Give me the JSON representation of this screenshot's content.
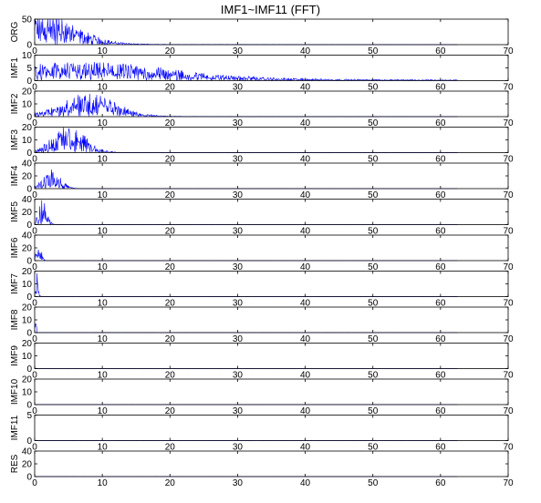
{
  "figure": {
    "title": "IMF1~IMF11 (FFT)"
  },
  "chart_data": [
    {
      "type": "line",
      "ylabel": "ORG",
      "xlim": [
        0,
        70
      ],
      "ylim": [
        0,
        50
      ],
      "yticks": [
        0,
        50
      ],
      "xticks": [
        0,
        10,
        20,
        30,
        40,
        50,
        60,
        70
      ],
      "x_max": 62.5,
      "line_color": "#0000ff",
      "profile": {
        "peak_freq": 1.0,
        "peak_amp": 40,
        "spread": 5,
        "floor": 0.8
      }
    },
    {
      "type": "line",
      "ylabel": "IMF1",
      "xlim": [
        0,
        70
      ],
      "ylim": [
        0,
        10
      ],
      "yticks": [
        0,
        5,
        10
      ],
      "xticks": [
        0,
        10,
        20,
        30,
        40,
        50,
        60,
        70
      ],
      "x_max": 62.5,
      "line_color": "#0000ff",
      "profile": {
        "peak_freq": 8.0,
        "peak_amp": 4,
        "spread": 12,
        "floor": 1.2
      }
    },
    {
      "type": "line",
      "ylabel": "IMF2",
      "xlim": [
        0,
        70
      ],
      "ylim": [
        0,
        20
      ],
      "yticks": [
        0,
        10,
        20
      ],
      "xticks": [
        0,
        10,
        20,
        30,
        40,
        50,
        60,
        70
      ],
      "x_max": 62.5,
      "line_color": "#0000ff",
      "profile": {
        "peak_freq": 8.0,
        "peak_amp": 12,
        "spread": 4,
        "floor": 0.3
      }
    },
    {
      "type": "line",
      "ylabel": "IMF3",
      "xlim": [
        0,
        70
      ],
      "ylim": [
        0,
        20
      ],
      "yticks": [
        0,
        10,
        20
      ],
      "xticks": [
        0,
        10,
        20,
        30,
        40,
        50,
        60,
        70
      ],
      "x_max": 62.5,
      "line_color": "#0000ff",
      "profile": {
        "peak_freq": 5.0,
        "peak_amp": 14,
        "spread": 2.5,
        "floor": 0.1
      }
    },
    {
      "type": "line",
      "ylabel": "IMF4",
      "xlim": [
        0,
        70
      ],
      "ylim": [
        0,
        40
      ],
      "yticks": [
        0,
        20,
        40
      ],
      "xticks": [
        0,
        10,
        20,
        30,
        40,
        50,
        60,
        70
      ],
      "x_max": 62.5,
      "line_color": "#0000ff",
      "profile": {
        "peak_freq": 2.5,
        "peak_amp": 20,
        "spread": 1.3,
        "floor": 0.05
      }
    },
    {
      "type": "line",
      "ylabel": "IMF5",
      "xlim": [
        0,
        70
      ],
      "ylim": [
        0,
        40
      ],
      "yticks": [
        0,
        20,
        40
      ],
      "xticks": [
        0,
        10,
        20,
        30,
        40,
        50,
        60,
        70
      ],
      "x_max": 62.5,
      "line_color": "#0000ff",
      "profile": {
        "peak_freq": 1.2,
        "peak_amp": 28,
        "spread": 0.6,
        "floor": 0.05
      }
    },
    {
      "type": "line",
      "ylabel": "IMF6",
      "xlim": [
        0,
        70
      ],
      "ylim": [
        0,
        40
      ],
      "yticks": [
        0,
        20,
        40
      ],
      "xticks": [
        0,
        10,
        20,
        30,
        40,
        50,
        60,
        70
      ],
      "x_max": 62.5,
      "line_color": "#0000ff",
      "profile": {
        "peak_freq": 0.6,
        "peak_amp": 20,
        "spread": 0.35,
        "floor": 0.05
      }
    },
    {
      "type": "line",
      "ylabel": "IMF7",
      "xlim": [
        0,
        70
      ],
      "ylim": [
        0,
        20
      ],
      "yticks": [
        0,
        10,
        20
      ],
      "xticks": [
        0,
        10,
        20,
        30,
        40,
        50,
        60,
        70
      ],
      "x_max": 62.5,
      "line_color": "#0000ff",
      "profile": {
        "peak_freq": 0.3,
        "peak_amp": 15,
        "spread": 0.2,
        "floor": 0.05
      }
    },
    {
      "type": "line",
      "ylabel": "IMF8",
      "xlim": [
        0,
        70
      ],
      "ylim": [
        0,
        20
      ],
      "yticks": [
        0,
        10,
        20
      ],
      "xticks": [
        0,
        10,
        20,
        30,
        40,
        50,
        60,
        70
      ],
      "x_max": 62.5,
      "line_color": "#0000ff",
      "profile": {
        "peak_freq": 0.15,
        "peak_amp": 10,
        "spread": 0.1,
        "floor": 0.03
      }
    },
    {
      "type": "line",
      "ylabel": "IMF9",
      "xlim": [
        0,
        70
      ],
      "ylim": [
        0,
        20
      ],
      "yticks": [
        0,
        10,
        20
      ],
      "xticks": [
        0,
        10,
        20,
        30,
        40,
        50,
        60,
        70
      ],
      "x_max": 62.5,
      "line_color": "#0000ff",
      "profile": {
        "peak_freq": 0.05,
        "peak_amp": 2,
        "spread": 0.05,
        "floor": 0.02
      }
    },
    {
      "type": "line",
      "ylabel": "IMF10",
      "xlim": [
        0,
        70
      ],
      "ylim": [
        0,
        20
      ],
      "yticks": [
        0,
        10,
        20
      ],
      "xticks": [
        0,
        10,
        20,
        30,
        40,
        50,
        60,
        70
      ],
      "x_max": 62.5,
      "line_color": "#0000ff",
      "profile": {
        "peak_freq": 0.03,
        "peak_amp": 1,
        "spread": 0.03,
        "floor": 0.02
      }
    },
    {
      "type": "line",
      "ylabel": "IMF11",
      "xlim": [
        0,
        70
      ],
      "ylim": [
        0,
        5
      ],
      "yticks": [
        0,
        5
      ],
      "xticks": [
        0,
        10,
        20,
        30,
        40,
        50,
        60,
        70
      ],
      "x_max": 62.5,
      "line_color": "#0000ff",
      "profile": {
        "peak_freq": 0.02,
        "peak_amp": 0.3,
        "spread": 0.02,
        "floor": 0.01
      }
    },
    {
      "type": "line",
      "ylabel": "RES",
      "xlim": [
        0,
        70
      ],
      "ylim": [
        0,
        40
      ],
      "yticks": [
        0,
        20,
        40
      ],
      "xticks": [
        0,
        10,
        20,
        30,
        40,
        50,
        60,
        70
      ],
      "x_max": 62.5,
      "line_color": "#0000ff",
      "profile": {
        "peak_freq": 0.01,
        "peak_amp": 1,
        "spread": 0.01,
        "floor": 0.05
      }
    }
  ]
}
